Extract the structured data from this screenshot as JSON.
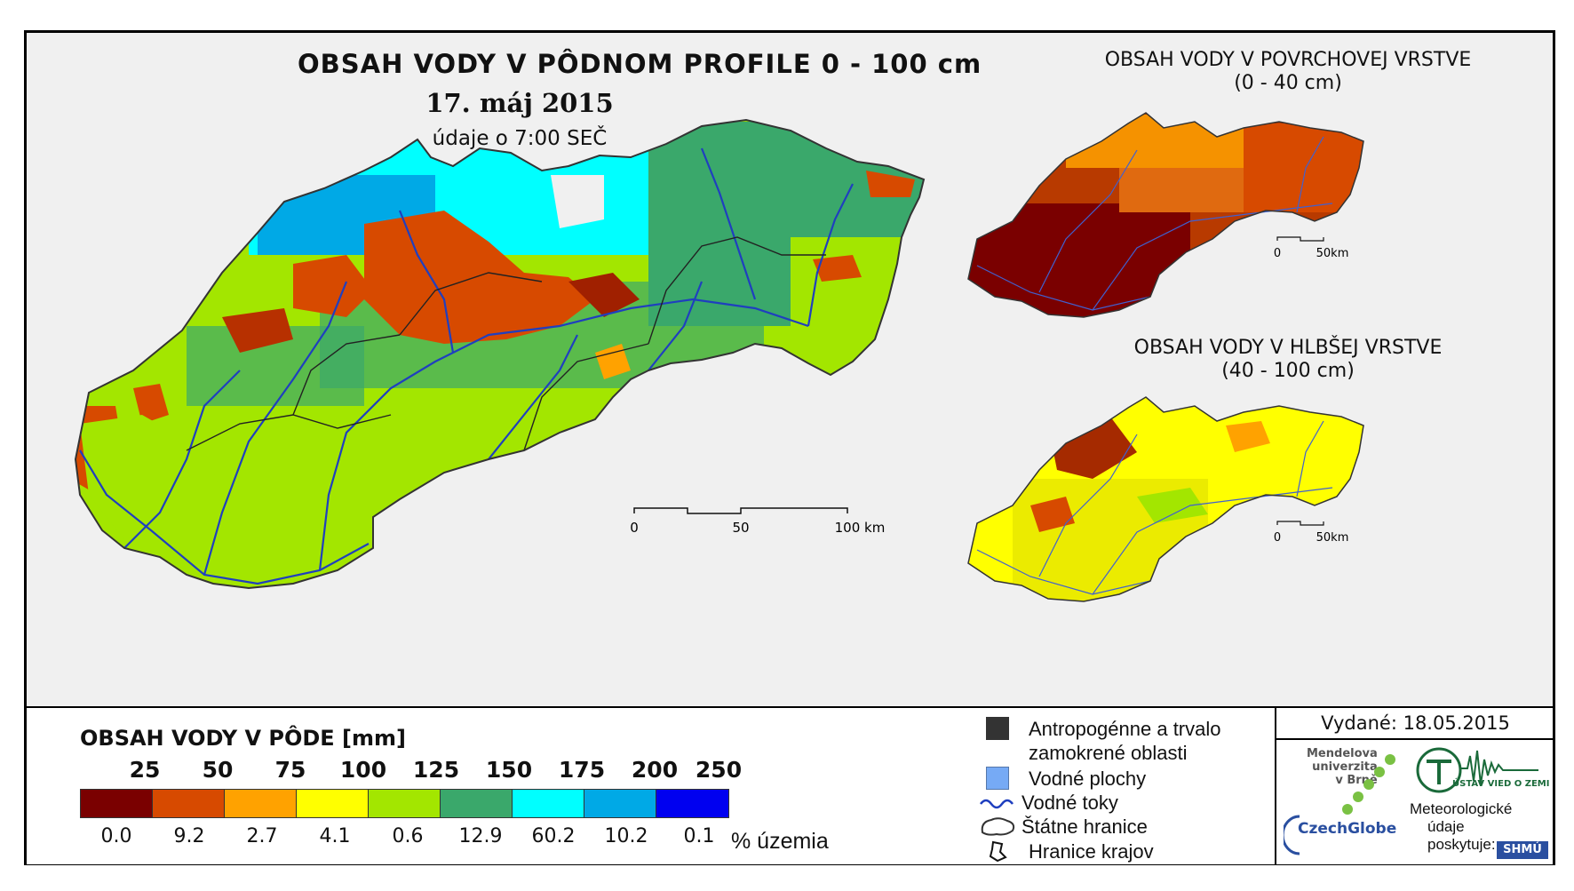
{
  "title": "OBSAH VODY V PÔDNOM PROFILE 0 - 100 cm",
  "date": "17. máj 2015",
  "time": "údaje o 7:00 SEČ",
  "surface_map": {
    "title_line1": "OBSAH VODY V POVRCHOVEJ VRSTVE",
    "title_line2": "(0 - 40 cm)"
  },
  "deep_map": {
    "title_line1": "OBSAH VODY V HLBŠEJ VRSTVE",
    "title_line2": "(40 - 100 cm)"
  },
  "scale_main": {
    "labels": [
      "0",
      "50",
      "100 km"
    ]
  },
  "scale_small": {
    "labels": [
      "0",
      "50km"
    ]
  },
  "legend": {
    "title": "OBSAH VODY V PÔDE [mm]",
    "breaks": [
      "25",
      "50",
      "75",
      "100",
      "125",
      "150",
      "175",
      "200",
      "250"
    ],
    "colors": [
      "#7a0000",
      "#d74a00",
      "#ffa200",
      "#ffff00",
      "#a3e600",
      "#3aa86b",
      "#00ffff",
      "#00a9e6",
      "#0000f0"
    ],
    "percentages": [
      "0.0",
      "9.2",
      "2.7",
      "4.1",
      "0.6",
      "12.9",
      "60.2",
      "10.2",
      "0.1"
    ],
    "percent_label": "% územia"
  },
  "symbols": {
    "anthropogenic_line1": "Antropogénne a trvalo",
    "anthropogenic_line2": "zamokrené oblasti",
    "water_bodies": "Vodné plochy",
    "rivers": "Vodné toky",
    "borders": "Štátne hranice",
    "regions": "Hranice krajov"
  },
  "issued": "Vydané: 18.05.2015",
  "credits": {
    "mendel_line1": "Mendelova",
    "mendel_line2": "univerzita",
    "mendel_line3": "v Brně",
    "czechglobe": "CzechGlobe",
    "uvz": "ÚSTAV VIED O ZEMI",
    "meteo_line1": "Meteorologické",
    "meteo_line2": "údaje",
    "meteo_line3": "poskytuje:",
    "shmu": "SHMÚ"
  },
  "colors": {
    "rivers": "#1f3fbf",
    "anthropogenic": "#333333",
    "water_bodies": "#76aaf5"
  }
}
